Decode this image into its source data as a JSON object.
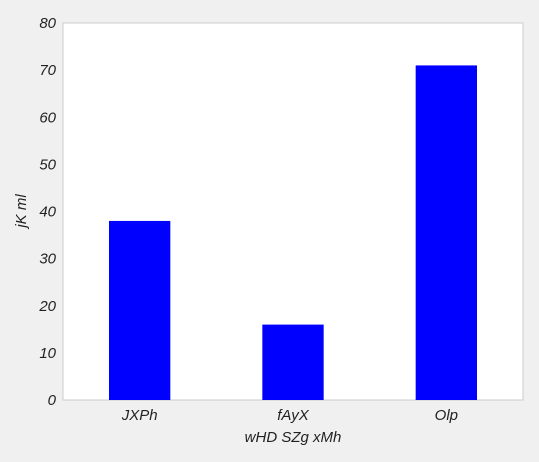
{
  "chart_data": {
    "type": "bar",
    "categories": [
      "JXPh",
      "fAyX",
      "Olp"
    ],
    "values": [
      38,
      16,
      71
    ],
    "xlabel": "wHD SZg xMh",
    "ylabel": "jK ml",
    "ylim": [
      0,
      80
    ],
    "yticks": [
      "0",
      "10",
      "20",
      "30",
      "40",
      "50",
      "60",
      "70",
      "80"
    ],
    "grid": false,
    "legend": "none",
    "bar_color": "#0000ff",
    "plot_background": "#ffffff",
    "figure_background": "#f0f0f0"
  }
}
